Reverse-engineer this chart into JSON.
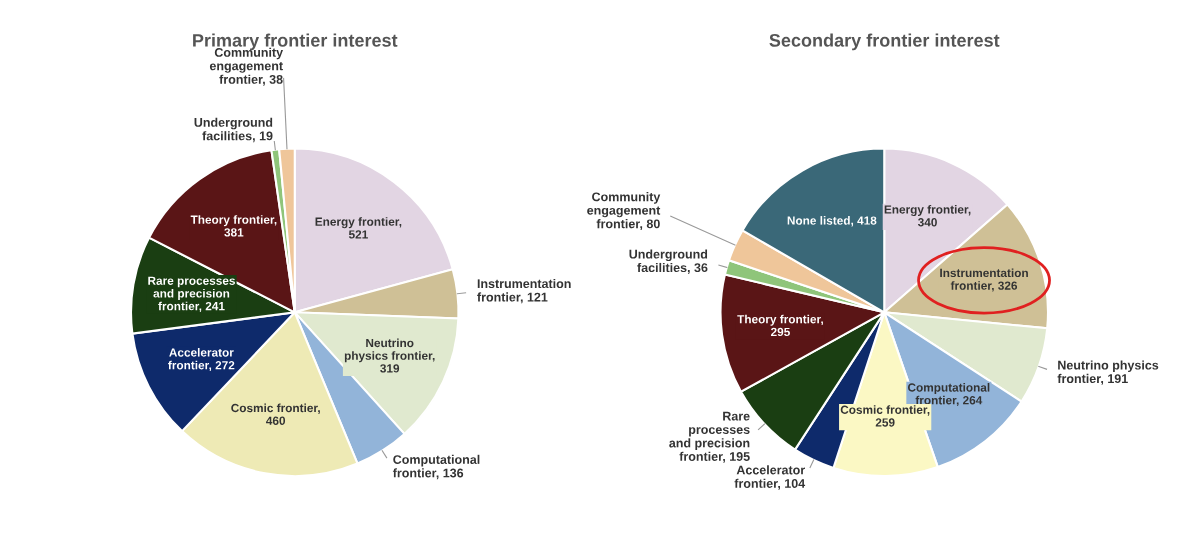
{
  "chart_data": [
    {
      "type": "pie",
      "title": "Primary frontier interest",
      "categories": [
        "Energy frontier,\n521",
        "Instrumentation\nfrontier, 121",
        "Neutrino\nphysics frontier,\n319",
        "Computational\nfrontier, 136",
        "Cosmic frontier,\n460",
        "Accelerator\nfrontier, 272",
        "Rare processes\nand precision\nfrontier, 241",
        "Theory frontier,\n381",
        "Underground\nfacilities, 19",
        "Community\nengagement\nfrontier, 38"
      ],
      "values": [
        521,
        121,
        319,
        136,
        460,
        272,
        241,
        381,
        19,
        38
      ],
      "colors": [
        "#e2d5e3",
        "#cfc096",
        "#e0e9cf",
        "#92b4d9",
        "#eeeab5",
        "#0e2a6b",
        "#1a3e12",
        "#5a1516",
        "#8fc57a",
        "#efc69a"
      ]
    },
    {
      "type": "pie",
      "title": "Secondary frontier interest",
      "categories": [
        "Energy frontier,\n340",
        "Instrumentation\nfrontier, 326",
        "Neutrino physics\nfrontier, 191",
        "Computational\nfrontier, 264",
        "Cosmic frontier,\n259",
        "Accelerator\nfrontier, 104",
        "Rare\nprocesses\nand precision\nfrontier, 195",
        "Theory frontier,\n295",
        "Underground\nfacilities, 36",
        "Community\nengagement\nfrontier, 80",
        "None listed, 418"
      ],
      "values": [
        340,
        326,
        191,
        264,
        259,
        104,
        195,
        295,
        36,
        80,
        418
      ],
      "colors": [
        "#e2d5e3",
        "#cfc096",
        "#e0e9cf",
        "#92b4d9",
        "#fbf8c4",
        "#0e2a6b",
        "#1a3e12",
        "#5a1516",
        "#8fc57a",
        "#efc69a",
        "#3a6878"
      ]
    }
  ]
}
